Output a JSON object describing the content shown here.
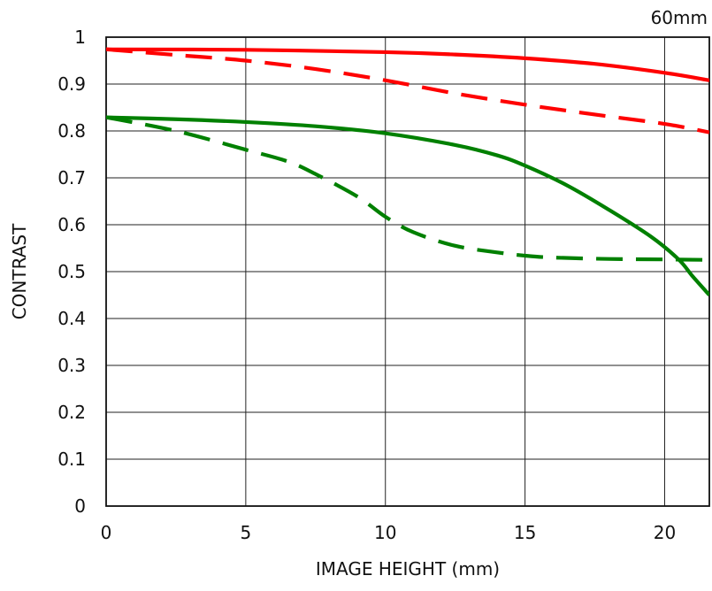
{
  "chart_data": {
    "type": "line",
    "title": "",
    "subtitle": "60mm",
    "xlabel": "IMAGE HEIGHT (mm)",
    "ylabel": "CONTRAST",
    "xlim": [
      0,
      21.6
    ],
    "ylim": [
      0,
      1
    ],
    "x_ticks": [
      "0",
      "5",
      "10",
      "15",
      "20"
    ],
    "y_ticks": [
      "0",
      "0.1",
      "0.2",
      "0.3",
      "0.4",
      "0.5",
      "0.6",
      "0.7",
      "0.8",
      "0.9",
      "1"
    ],
    "grid": true,
    "legend": "none",
    "series": [
      {
        "color": "#ff0000",
        "style": "solid",
        "points": [
          [
            0,
            0.974
          ],
          [
            5,
            0.973
          ],
          [
            10,
            0.968
          ],
          [
            12.5,
            0.963
          ],
          [
            15,
            0.955
          ],
          [
            17.5,
            0.943
          ],
          [
            20,
            0.924
          ],
          [
            21.6,
            0.908
          ]
        ]
      },
      {
        "color": "#ff0000",
        "style": "dashed",
        "points": [
          [
            0,
            0.974
          ],
          [
            2.5,
            0.962
          ],
          [
            5,
            0.95
          ],
          [
            7.5,
            0.932
          ],
          [
            10,
            0.908
          ],
          [
            12.5,
            0.88
          ],
          [
            15,
            0.856
          ],
          [
            17.5,
            0.835
          ],
          [
            20,
            0.815
          ],
          [
            21.6,
            0.797
          ]
        ]
      },
      {
        "color": "#008000",
        "style": "solid",
        "points": [
          [
            0,
            0.829
          ],
          [
            2.5,
            0.825
          ],
          [
            5,
            0.819
          ],
          [
            7.5,
            0.81
          ],
          [
            10,
            0.795
          ],
          [
            12.5,
            0.77
          ],
          [
            14,
            0.748
          ],
          [
            15,
            0.726
          ],
          [
            16.5,
            0.684
          ],
          [
            18,
            0.632
          ],
          [
            19.5,
            0.575
          ],
          [
            20.5,
            0.526
          ],
          [
            21,
            0.49
          ],
          [
            21.6,
            0.45
          ]
        ]
      },
      {
        "color": "#008000",
        "style": "dashed",
        "points": [
          [
            0,
            0.829
          ],
          [
            2.5,
            0.8
          ],
          [
            5,
            0.76
          ],
          [
            6.5,
            0.735
          ],
          [
            7.5,
            0.708
          ],
          [
            9,
            0.66
          ],
          [
            10,
            0.617
          ],
          [
            11,
            0.584
          ],
          [
            12.5,
            0.555
          ],
          [
            14,
            0.541
          ],
          [
            15,
            0.534
          ],
          [
            16,
            0.53
          ],
          [
            18,
            0.527
          ],
          [
            20,
            0.526
          ],
          [
            21.6,
            0.525
          ]
        ]
      }
    ]
  }
}
